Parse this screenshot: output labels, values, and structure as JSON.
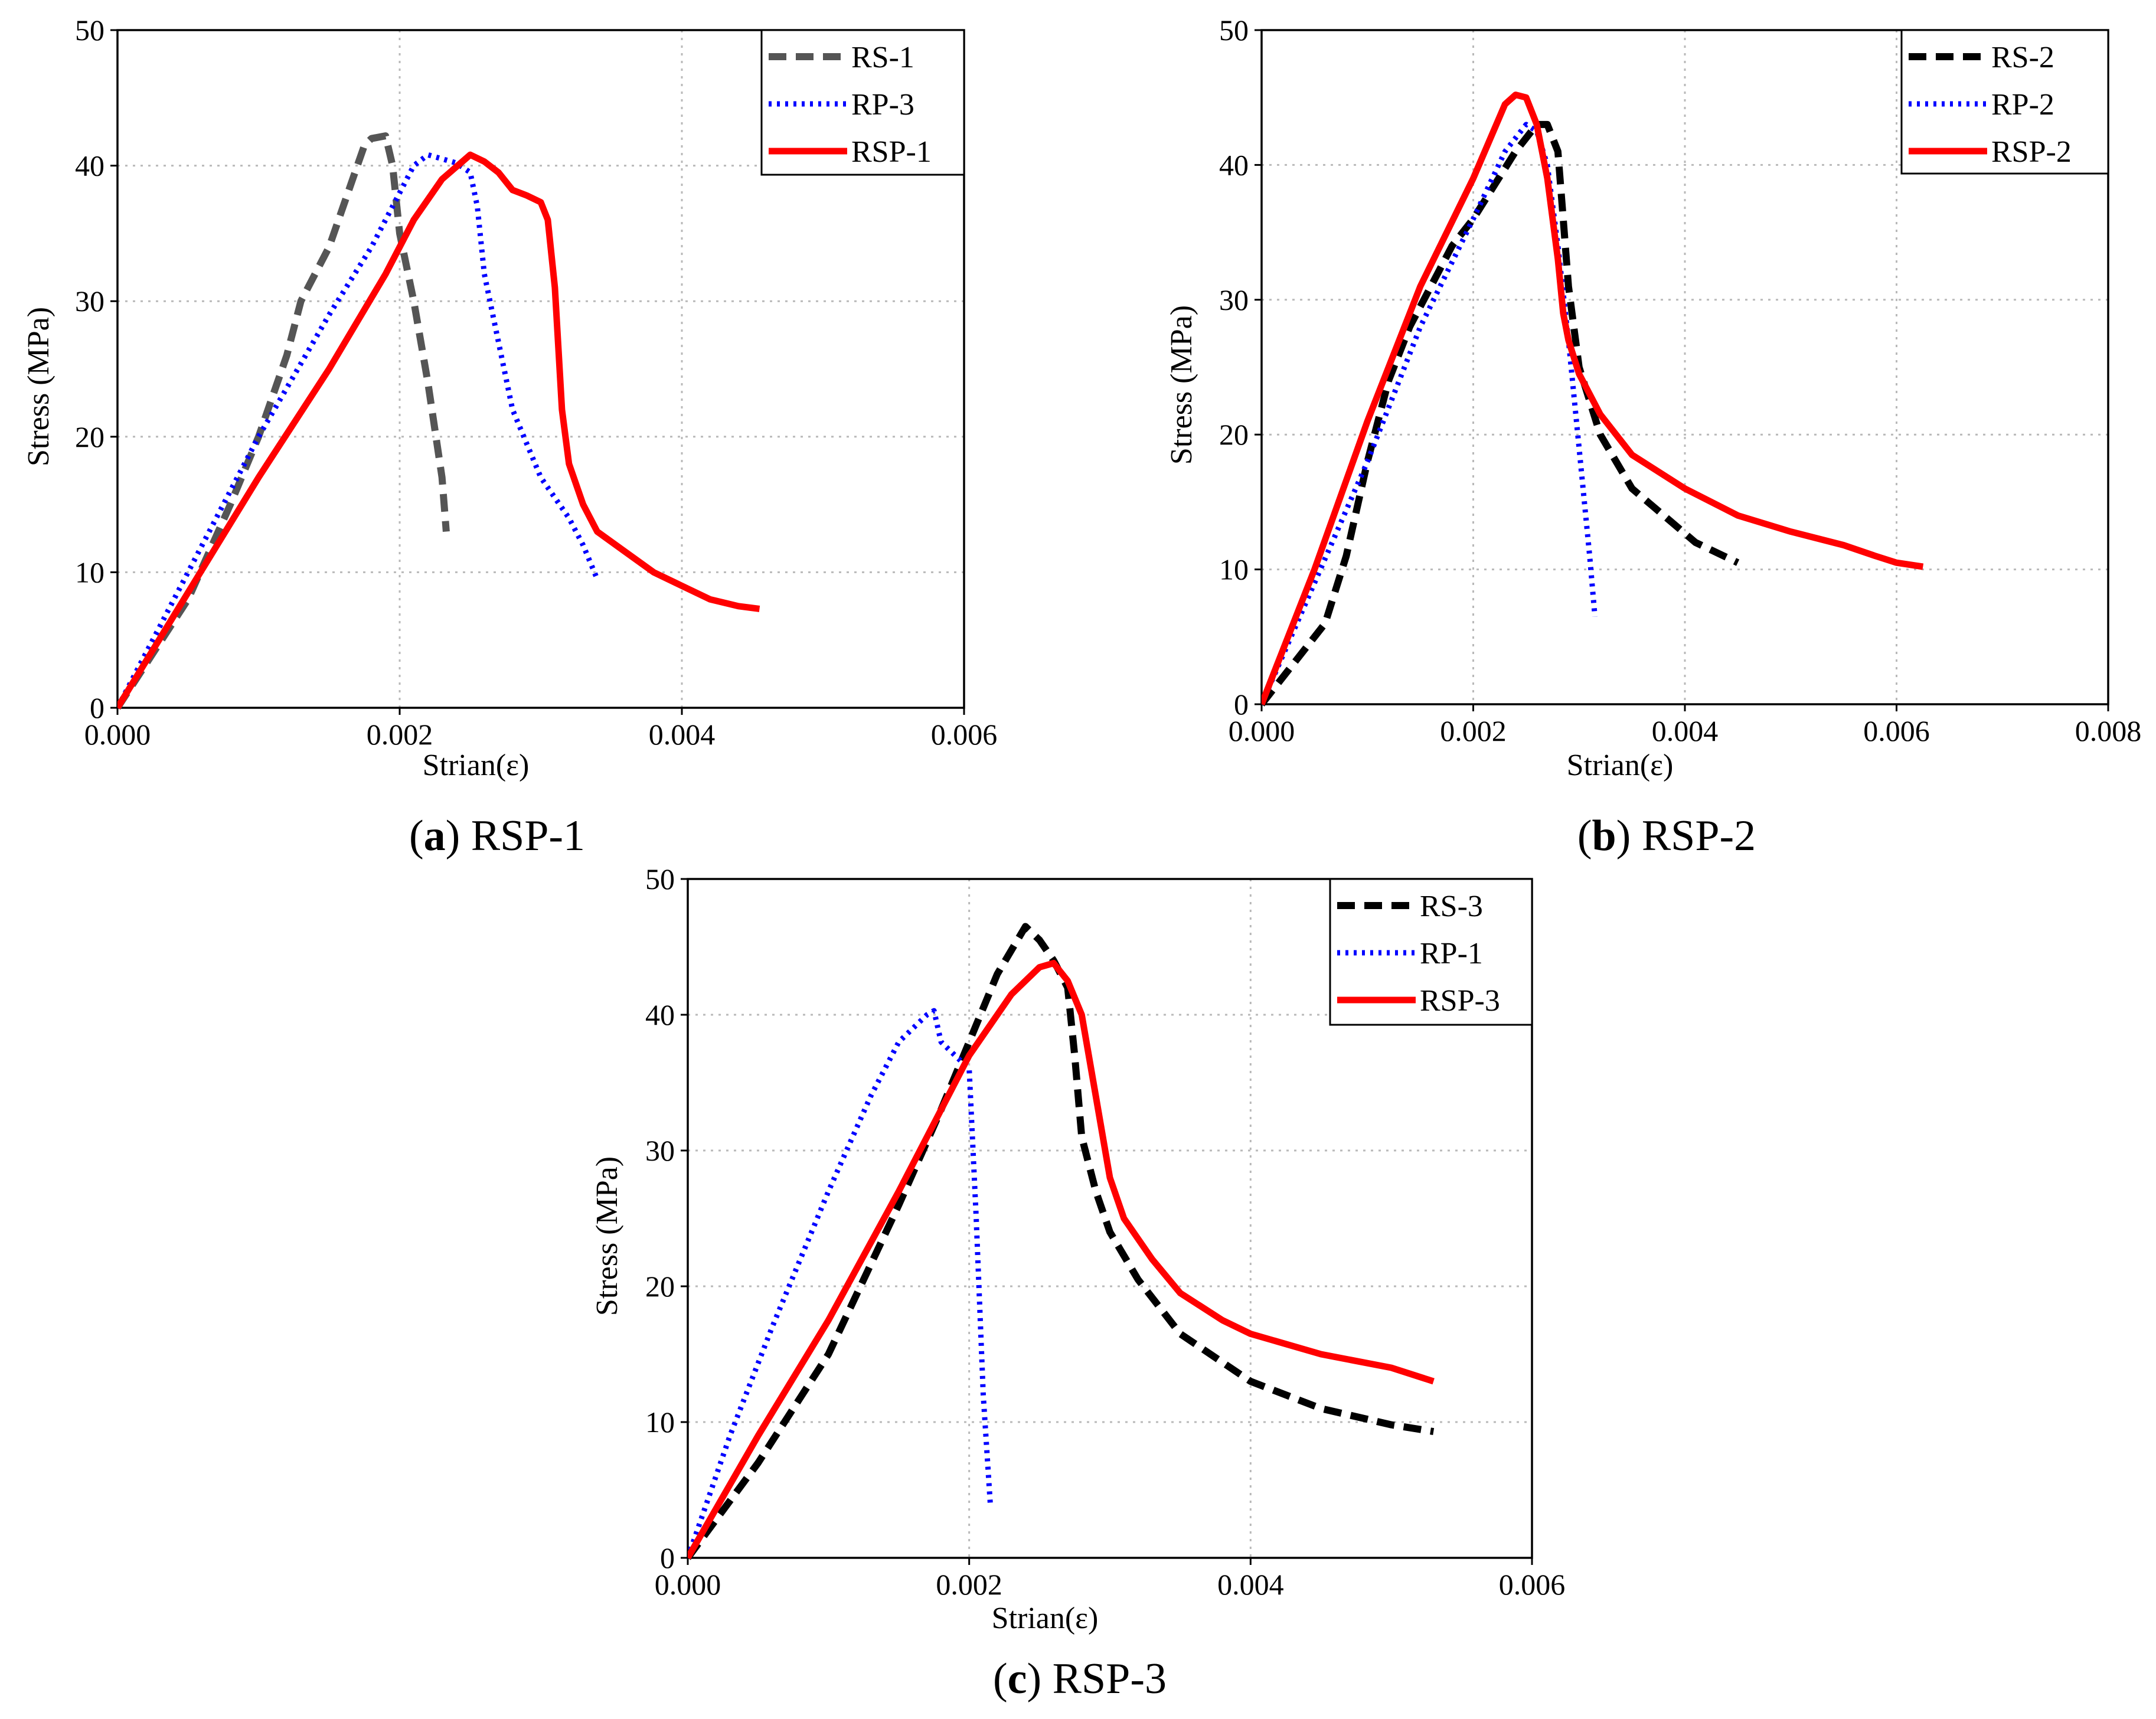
{
  "chart_data": [
    {
      "id": "a",
      "type": "line",
      "caption": {
        "letter": "a",
        "text": "RSP-1"
      },
      "xlabel": "Strian(ε)",
      "ylabel": "Stress (MPa)",
      "xlim": [
        0,
        0.006
      ],
      "ylim": [
        0,
        50
      ],
      "xticks": [
        "0.000",
        "0.002",
        "0.004",
        "0.006"
      ],
      "yticks": [
        "0",
        "10",
        "20",
        "30",
        "40",
        "50"
      ],
      "grid": true,
      "legend_position": "top-right",
      "series": [
        {
          "name": "RS-1",
          "color": "#555555",
          "style": "dashed",
          "x": [
            0,
            0.0005,
            0.0008,
            0.001,
            0.0012,
            0.0013,
            0.0014,
            0.0015,
            0.0016,
            0.0017,
            0.00175,
            0.0018,
            0.0019,
            0.00195,
            0.002,
            0.0021,
            0.0022,
            0.0023,
            0.00233
          ],
          "y": [
            0,
            8,
            15,
            20,
            26,
            30,
            32,
            34,
            37,
            40,
            41.5,
            42,
            42.2,
            40,
            35,
            30,
            24,
            17,
            13
          ]
        },
        {
          "name": "RP-3",
          "color": "#0000ff",
          "style": "dotted",
          "x": [
            0,
            0.0005,
            0.001,
            0.0015,
            0.0018,
            0.002,
            0.0021,
            0.0022,
            0.0023,
            0.0024,
            0.0025,
            0.00255,
            0.0026,
            0.0027,
            0.0028,
            0.003,
            0.0032,
            0.0033,
            0.0034
          ],
          "y": [
            0,
            10,
            20,
            29,
            34,
            38,
            40,
            40.8,
            40.5,
            40.2,
            39.5,
            37,
            32,
            27,
            22,
            17,
            14,
            12,
            9.5
          ]
        },
        {
          "name": "RSP-1",
          "color": "#ff0000",
          "style": "solid",
          "x": [
            0,
            0.0005,
            0.001,
            0.0015,
            0.0019,
            0.0021,
            0.0023,
            0.0025,
            0.0026,
            0.0027,
            0.0028,
            0.0029,
            0.003,
            0.00305,
            0.0031,
            0.00315,
            0.0032,
            0.0033,
            0.0034,
            0.0036,
            0.0038,
            0.004,
            0.0042,
            0.0044,
            0.00455
          ],
          "y": [
            0,
            8.5,
            17,
            25,
            32,
            36,
            39,
            40.8,
            40.3,
            39.5,
            38.2,
            37.8,
            37.3,
            36,
            31,
            22,
            18,
            15,
            13,
            11.5,
            10,
            9,
            8,
            7.5,
            7.3
          ]
        }
      ]
    },
    {
      "id": "b",
      "type": "line",
      "caption": {
        "letter": "b",
        "text": "RSP-2"
      },
      "xlabel": "Strian(ε)",
      "ylabel": "Stress (MPa)",
      "xlim": [
        0,
        0.008
      ],
      "ylim": [
        0,
        50
      ],
      "xticks": [
        "0.000",
        "0.002",
        "0.004",
        "0.006",
        "0.008"
      ],
      "yticks": [
        "0",
        "10",
        "20",
        "30",
        "40",
        "50"
      ],
      "grid": true,
      "legend_position": "top-right",
      "series": [
        {
          "name": "RS-2",
          "color": "#000000",
          "style": "dashed",
          "x": [
            0,
            0.0003,
            0.0006,
            0.0008,
            0.001,
            0.0012,
            0.0014,
            0.0016,
            0.0018,
            0.002,
            0.0022,
            0.0024,
            0.0026,
            0.0027,
            0.0028,
            0.00285,
            0.0029,
            0.003,
            0.0032,
            0.0035,
            0.0038,
            0.0041,
            0.0045
          ],
          "y": [
            0,
            3,
            6,
            11,
            18,
            24,
            28,
            31,
            34,
            36,
            38.5,
            41,
            43,
            43,
            41,
            36,
            31,
            25,
            20,
            16,
            14,
            12,
            10.5
          ]
        },
        {
          "name": "RP-2",
          "color": "#0000ff",
          "style": "dotted",
          "x": [
            0,
            0.0005,
            0.001,
            0.0015,
            0.002,
            0.0023,
            0.0025,
            0.0026,
            0.0027,
            0.0028,
            0.0029,
            0.003,
            0.0031,
            0.00315
          ],
          "y": [
            0,
            9,
            18,
            28,
            36,
            41,
            43,
            42.5,
            40,
            34,
            27,
            19,
            11,
            6.5
          ]
        },
        {
          "name": "RSP-2",
          "color": "#ff0000",
          "style": "solid",
          "x": [
            0,
            0.0005,
            0.001,
            0.0015,
            0.002,
            0.0023,
            0.0024,
            0.0025,
            0.0026,
            0.0027,
            0.0028,
            0.00285,
            0.0029,
            0.003,
            0.0032,
            0.0035,
            0.004,
            0.0045,
            0.005,
            0.0055,
            0.0058,
            0.006,
            0.00625
          ],
          "y": [
            0,
            10,
            21,
            31,
            39,
            44.5,
            45.2,
            45,
            43,
            39,
            33,
            29,
            27,
            24.5,
            21.5,
            18.5,
            16,
            14,
            12.8,
            11.8,
            11,
            10.5,
            10.2
          ]
        }
      ]
    },
    {
      "id": "c",
      "type": "line",
      "caption": {
        "letter": "c",
        "text": "RSP-3"
      },
      "xlabel": "Strian(ε)",
      "ylabel": "Stress (MPa)",
      "xlim": [
        0,
        0.006
      ],
      "ylim": [
        0,
        50
      ],
      "xticks": [
        "0.000",
        "0.002",
        "0.004",
        "0.006"
      ],
      "yticks": [
        "0",
        "10",
        "20",
        "30",
        "40",
        "50"
      ],
      "grid": true,
      "legend_position": "top-right",
      "series": [
        {
          "name": "RS-3",
          "color": "#000000",
          "style": "dashed",
          "x": [
            0,
            0.0005,
            0.001,
            0.0015,
            0.0018,
            0.002,
            0.0022,
            0.0024,
            0.0025,
            0.0026,
            0.0027,
            0.00275,
            0.0028,
            0.0029,
            0.003,
            0.0032,
            0.0035,
            0.004,
            0.0045,
            0.005,
            0.0053
          ],
          "y": [
            0,
            7,
            15,
            26,
            33,
            38,
            43,
            46.5,
            45.5,
            44,
            42,
            37,
            31,
            27,
            24,
            20.5,
            16.5,
            13,
            11,
            9.8,
            9.3
          ]
        },
        {
          "name": "RP-1",
          "color": "#0000ff",
          "style": "dotted",
          "x": [
            0,
            0.0003,
            0.0006,
            0.001,
            0.0013,
            0.0015,
            0.0017,
            0.00175,
            0.0018,
            0.0019,
            0.002,
            0.00205,
            0.0021,
            0.00215
          ],
          "y": [
            0,
            9,
            17,
            27,
            34,
            38,
            40,
            40.3,
            38,
            37,
            36,
            25,
            12,
            4
          ]
        },
        {
          "name": "RSP-3",
          "color": "#ff0000",
          "style": "solid",
          "x": [
            0,
            0.0005,
            0.001,
            0.0015,
            0.002,
            0.0023,
            0.0025,
            0.0026,
            0.0027,
            0.0028,
            0.0029,
            0.003,
            0.0031,
            0.0033,
            0.0035,
            0.0038,
            0.004,
            0.0045,
            0.005,
            0.0053
          ],
          "y": [
            0,
            9,
            17.5,
            27,
            37,
            41.5,
            43.5,
            43.8,
            42.5,
            40,
            34,
            28,
            25,
            22,
            19.5,
            17.5,
            16.5,
            15,
            14,
            13
          ]
        }
      ]
    }
  ]
}
